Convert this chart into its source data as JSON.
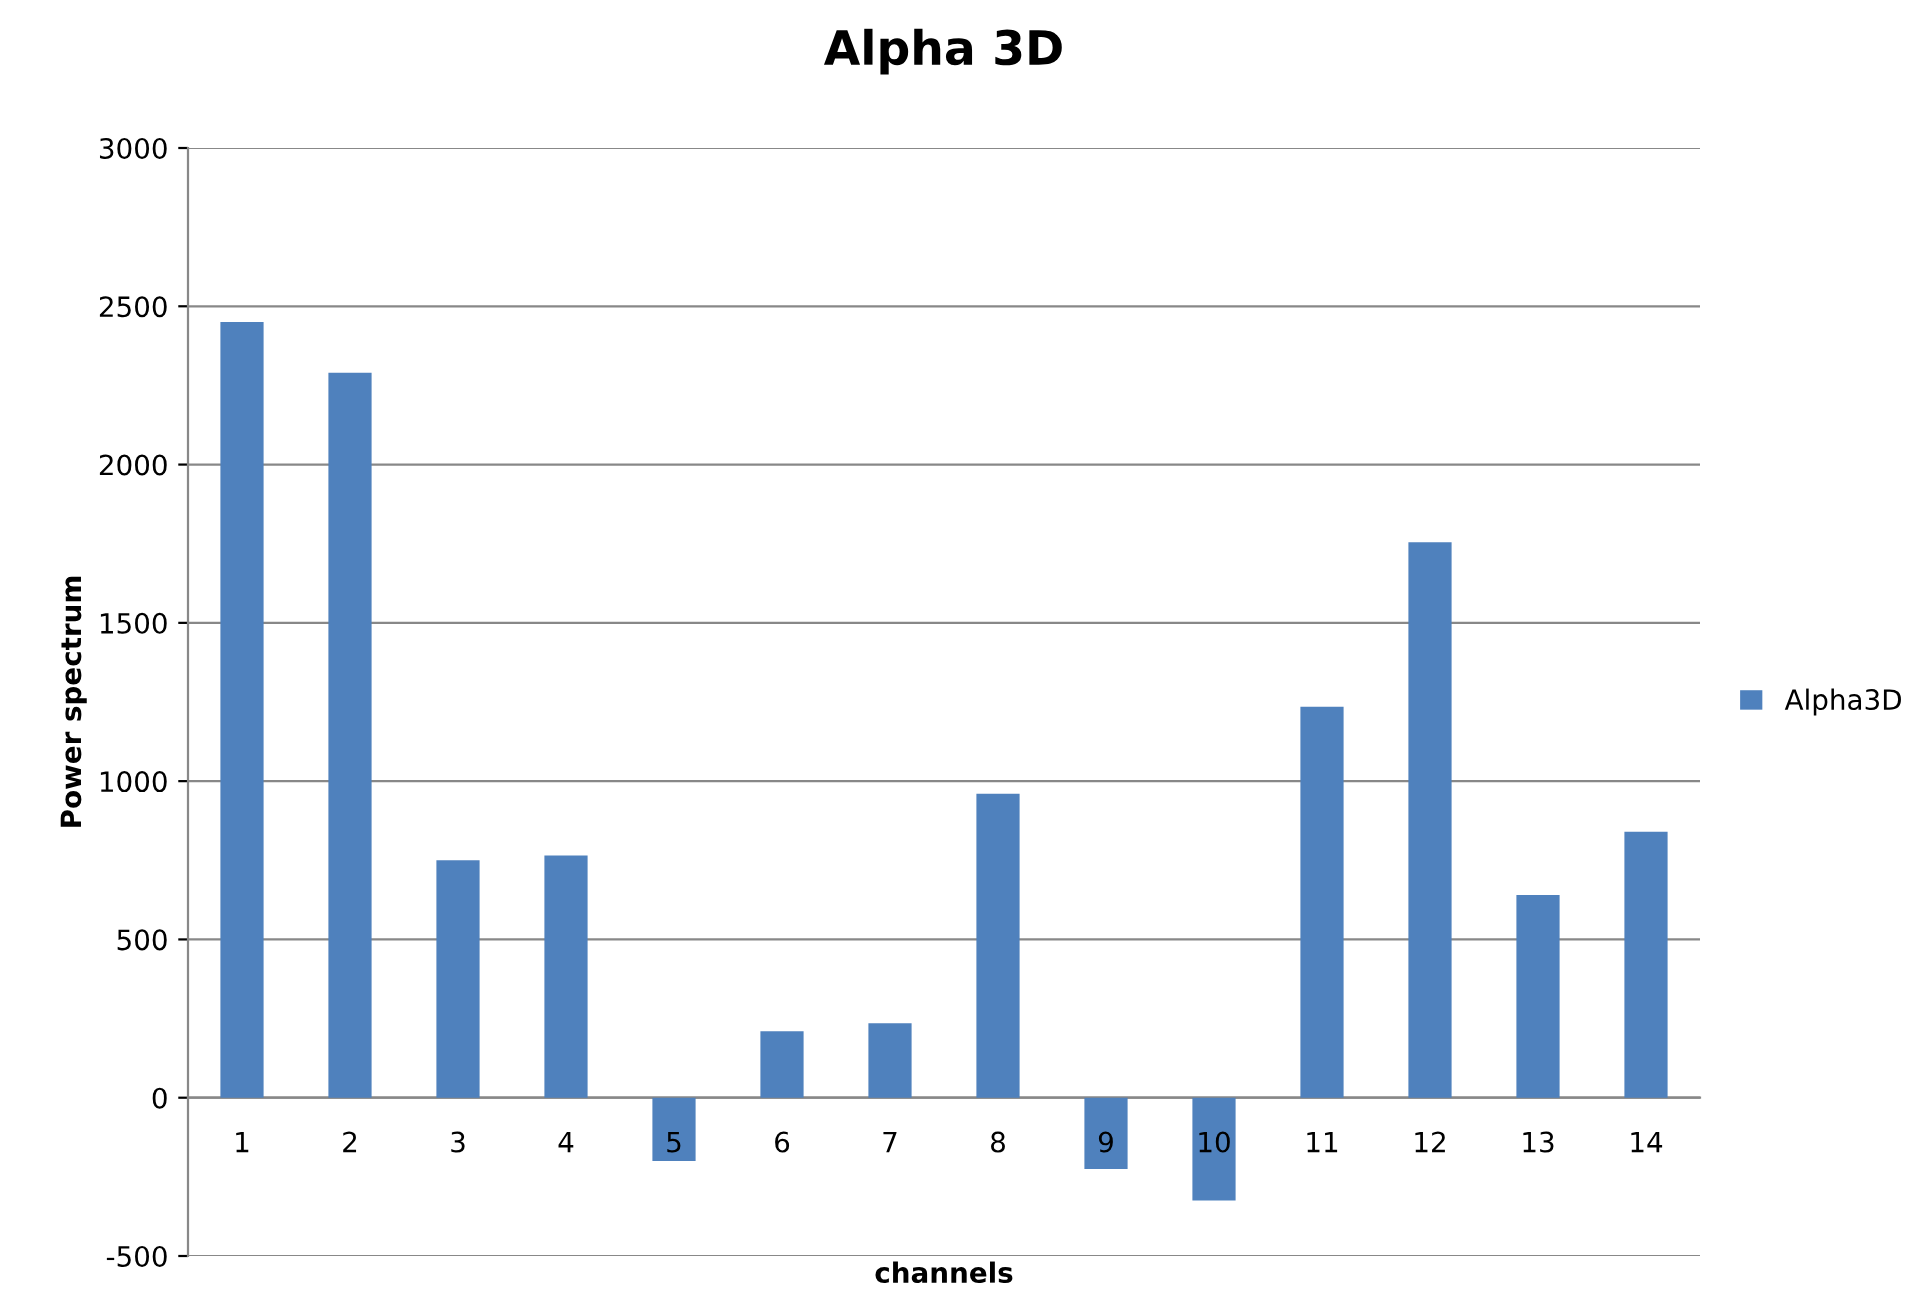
{
  "chart_data": {
    "type": "bar",
    "title": "Alpha 3D",
    "xlabel": "channels",
    "ylabel": "Power spectrum",
    "categories": [
      "1",
      "2",
      "3",
      "4",
      "5",
      "6",
      "7",
      "8",
      "9",
      "10",
      "11",
      "12",
      "13",
      "14"
    ],
    "series": [
      {
        "name": "Alpha3D",
        "color": "#4f81bd",
        "values": [
          2450,
          2290,
          750,
          765,
          -200,
          210,
          235,
          960,
          -225,
          -325,
          1235,
          1755,
          640,
          840
        ]
      }
    ],
    "ylim": [
      -500,
      3000
    ],
    "yticks": [
      -500,
      0,
      500,
      1000,
      1500,
      2000,
      2500,
      3000
    ],
    "grid": "y",
    "legend": "right"
  }
}
